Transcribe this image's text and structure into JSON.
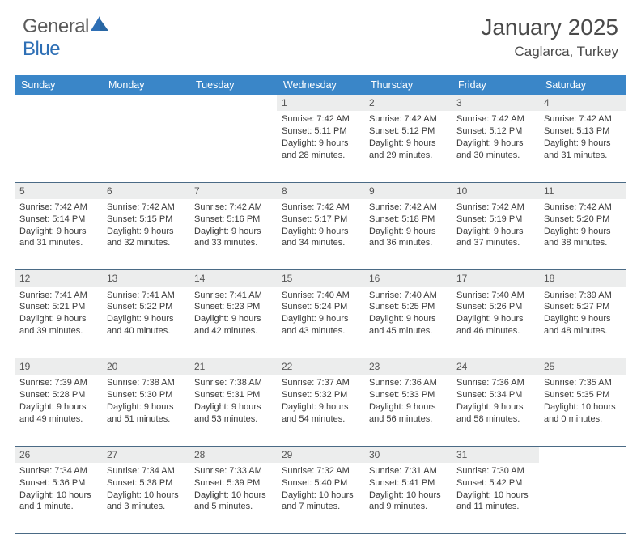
{
  "logo": {
    "text_general": "General",
    "text_blue": "Blue"
  },
  "header": {
    "title": "January 2025",
    "location": "Caglarca, Turkey"
  },
  "colors": {
    "header_bg": "#3a86c8",
    "header_fg": "#ffffff",
    "daynum_bg": "#eceded",
    "row_border": "#4a6a85",
    "text": "#3a3a3a",
    "logo_gray": "#5a5a5a",
    "logo_blue": "#2e6fb5"
  },
  "weekdays": [
    "Sunday",
    "Monday",
    "Tuesday",
    "Wednesday",
    "Thursday",
    "Friday",
    "Saturday"
  ],
  "weeks": [
    [
      null,
      null,
      null,
      {
        "n": "1",
        "sr": "7:42 AM",
        "ss": "5:11 PM",
        "dl": "9 hours and 28 minutes."
      },
      {
        "n": "2",
        "sr": "7:42 AM",
        "ss": "5:12 PM",
        "dl": "9 hours and 29 minutes."
      },
      {
        "n": "3",
        "sr": "7:42 AM",
        "ss": "5:12 PM",
        "dl": "9 hours and 30 minutes."
      },
      {
        "n": "4",
        "sr": "7:42 AM",
        "ss": "5:13 PM",
        "dl": "9 hours and 31 minutes."
      }
    ],
    [
      {
        "n": "5",
        "sr": "7:42 AM",
        "ss": "5:14 PM",
        "dl": "9 hours and 31 minutes."
      },
      {
        "n": "6",
        "sr": "7:42 AM",
        "ss": "5:15 PM",
        "dl": "9 hours and 32 minutes."
      },
      {
        "n": "7",
        "sr": "7:42 AM",
        "ss": "5:16 PM",
        "dl": "9 hours and 33 minutes."
      },
      {
        "n": "8",
        "sr": "7:42 AM",
        "ss": "5:17 PM",
        "dl": "9 hours and 34 minutes."
      },
      {
        "n": "9",
        "sr": "7:42 AM",
        "ss": "5:18 PM",
        "dl": "9 hours and 36 minutes."
      },
      {
        "n": "10",
        "sr": "7:42 AM",
        "ss": "5:19 PM",
        "dl": "9 hours and 37 minutes."
      },
      {
        "n": "11",
        "sr": "7:42 AM",
        "ss": "5:20 PM",
        "dl": "9 hours and 38 minutes."
      }
    ],
    [
      {
        "n": "12",
        "sr": "7:41 AM",
        "ss": "5:21 PM",
        "dl": "9 hours and 39 minutes."
      },
      {
        "n": "13",
        "sr": "7:41 AM",
        "ss": "5:22 PM",
        "dl": "9 hours and 40 minutes."
      },
      {
        "n": "14",
        "sr": "7:41 AM",
        "ss": "5:23 PM",
        "dl": "9 hours and 42 minutes."
      },
      {
        "n": "15",
        "sr": "7:40 AM",
        "ss": "5:24 PM",
        "dl": "9 hours and 43 minutes."
      },
      {
        "n": "16",
        "sr": "7:40 AM",
        "ss": "5:25 PM",
        "dl": "9 hours and 45 minutes."
      },
      {
        "n": "17",
        "sr": "7:40 AM",
        "ss": "5:26 PM",
        "dl": "9 hours and 46 minutes."
      },
      {
        "n": "18",
        "sr": "7:39 AM",
        "ss": "5:27 PM",
        "dl": "9 hours and 48 minutes."
      }
    ],
    [
      {
        "n": "19",
        "sr": "7:39 AM",
        "ss": "5:28 PM",
        "dl": "9 hours and 49 minutes."
      },
      {
        "n": "20",
        "sr": "7:38 AM",
        "ss": "5:30 PM",
        "dl": "9 hours and 51 minutes."
      },
      {
        "n": "21",
        "sr": "7:38 AM",
        "ss": "5:31 PM",
        "dl": "9 hours and 53 minutes."
      },
      {
        "n": "22",
        "sr": "7:37 AM",
        "ss": "5:32 PM",
        "dl": "9 hours and 54 minutes."
      },
      {
        "n": "23",
        "sr": "7:36 AM",
        "ss": "5:33 PM",
        "dl": "9 hours and 56 minutes."
      },
      {
        "n": "24",
        "sr": "7:36 AM",
        "ss": "5:34 PM",
        "dl": "9 hours and 58 minutes."
      },
      {
        "n": "25",
        "sr": "7:35 AM",
        "ss": "5:35 PM",
        "dl": "10 hours and 0 minutes."
      }
    ],
    [
      {
        "n": "26",
        "sr": "7:34 AM",
        "ss": "5:36 PM",
        "dl": "10 hours and 1 minute."
      },
      {
        "n": "27",
        "sr": "7:34 AM",
        "ss": "5:38 PM",
        "dl": "10 hours and 3 minutes."
      },
      {
        "n": "28",
        "sr": "7:33 AM",
        "ss": "5:39 PM",
        "dl": "10 hours and 5 minutes."
      },
      {
        "n": "29",
        "sr": "7:32 AM",
        "ss": "5:40 PM",
        "dl": "10 hours and 7 minutes."
      },
      {
        "n": "30",
        "sr": "7:31 AM",
        "ss": "5:41 PM",
        "dl": "10 hours and 9 minutes."
      },
      {
        "n": "31",
        "sr": "7:30 AM",
        "ss": "5:42 PM",
        "dl": "10 hours and 11 minutes."
      },
      null
    ]
  ],
  "labels": {
    "sunrise": "Sunrise:",
    "sunset": "Sunset:",
    "daylight": "Daylight:"
  }
}
